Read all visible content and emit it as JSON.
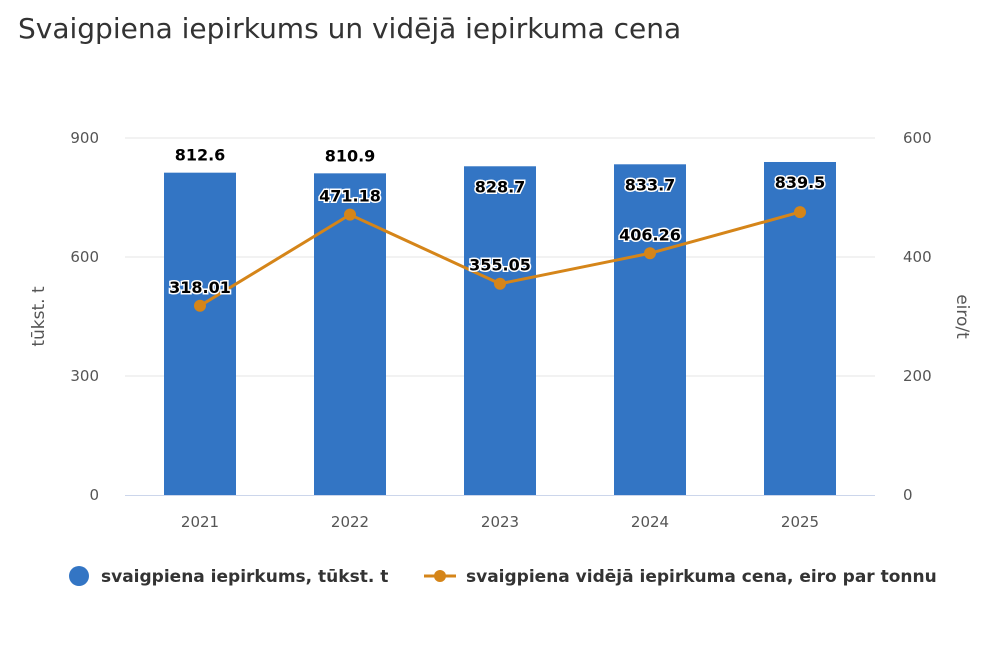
{
  "title": "Svaigpiena iepirkums un vidējā iepirkuma cena",
  "chart_data": {
    "type": "bar+line",
    "title": "Svaigpiena iepirkums un vidējā iepirkuma cena",
    "categories": [
      "2021",
      "2022",
      "2023",
      "2024",
      "2025"
    ],
    "series": [
      {
        "name": "svaigpiena iepirkums, tūkst. t",
        "type": "bar",
        "axis": "left",
        "color": "#3375c4",
        "values": [
          812.6,
          810.9,
          828.7,
          833.7,
          839.5
        ],
        "labels": [
          "812.6",
          "810.9",
          "828.7",
          "833.7",
          "839.5"
        ]
      },
      {
        "name": "svaigpiena vidējā iepirkuma cena, eiro par tonnu",
        "type": "line",
        "axis": "right",
        "color": "#d58519",
        "values": [
          318.01,
          471.18,
          355.05,
          406.26,
          475.5
        ],
        "labels": [
          "318.01",
          "471.18",
          "355.05",
          "406.26",
          ""
        ]
      }
    ],
    "y_left": {
      "label": "tūkst. t",
      "min": 0,
      "max": 900,
      "ticks": [
        "0",
        "300",
        "600",
        "900"
      ]
    },
    "y_right": {
      "label": "eiro/t",
      "min": 0,
      "max": 600,
      "ticks": [
        "0",
        "200",
        "400",
        "600"
      ]
    },
    "legend_position": "bottom",
    "grid": true
  }
}
